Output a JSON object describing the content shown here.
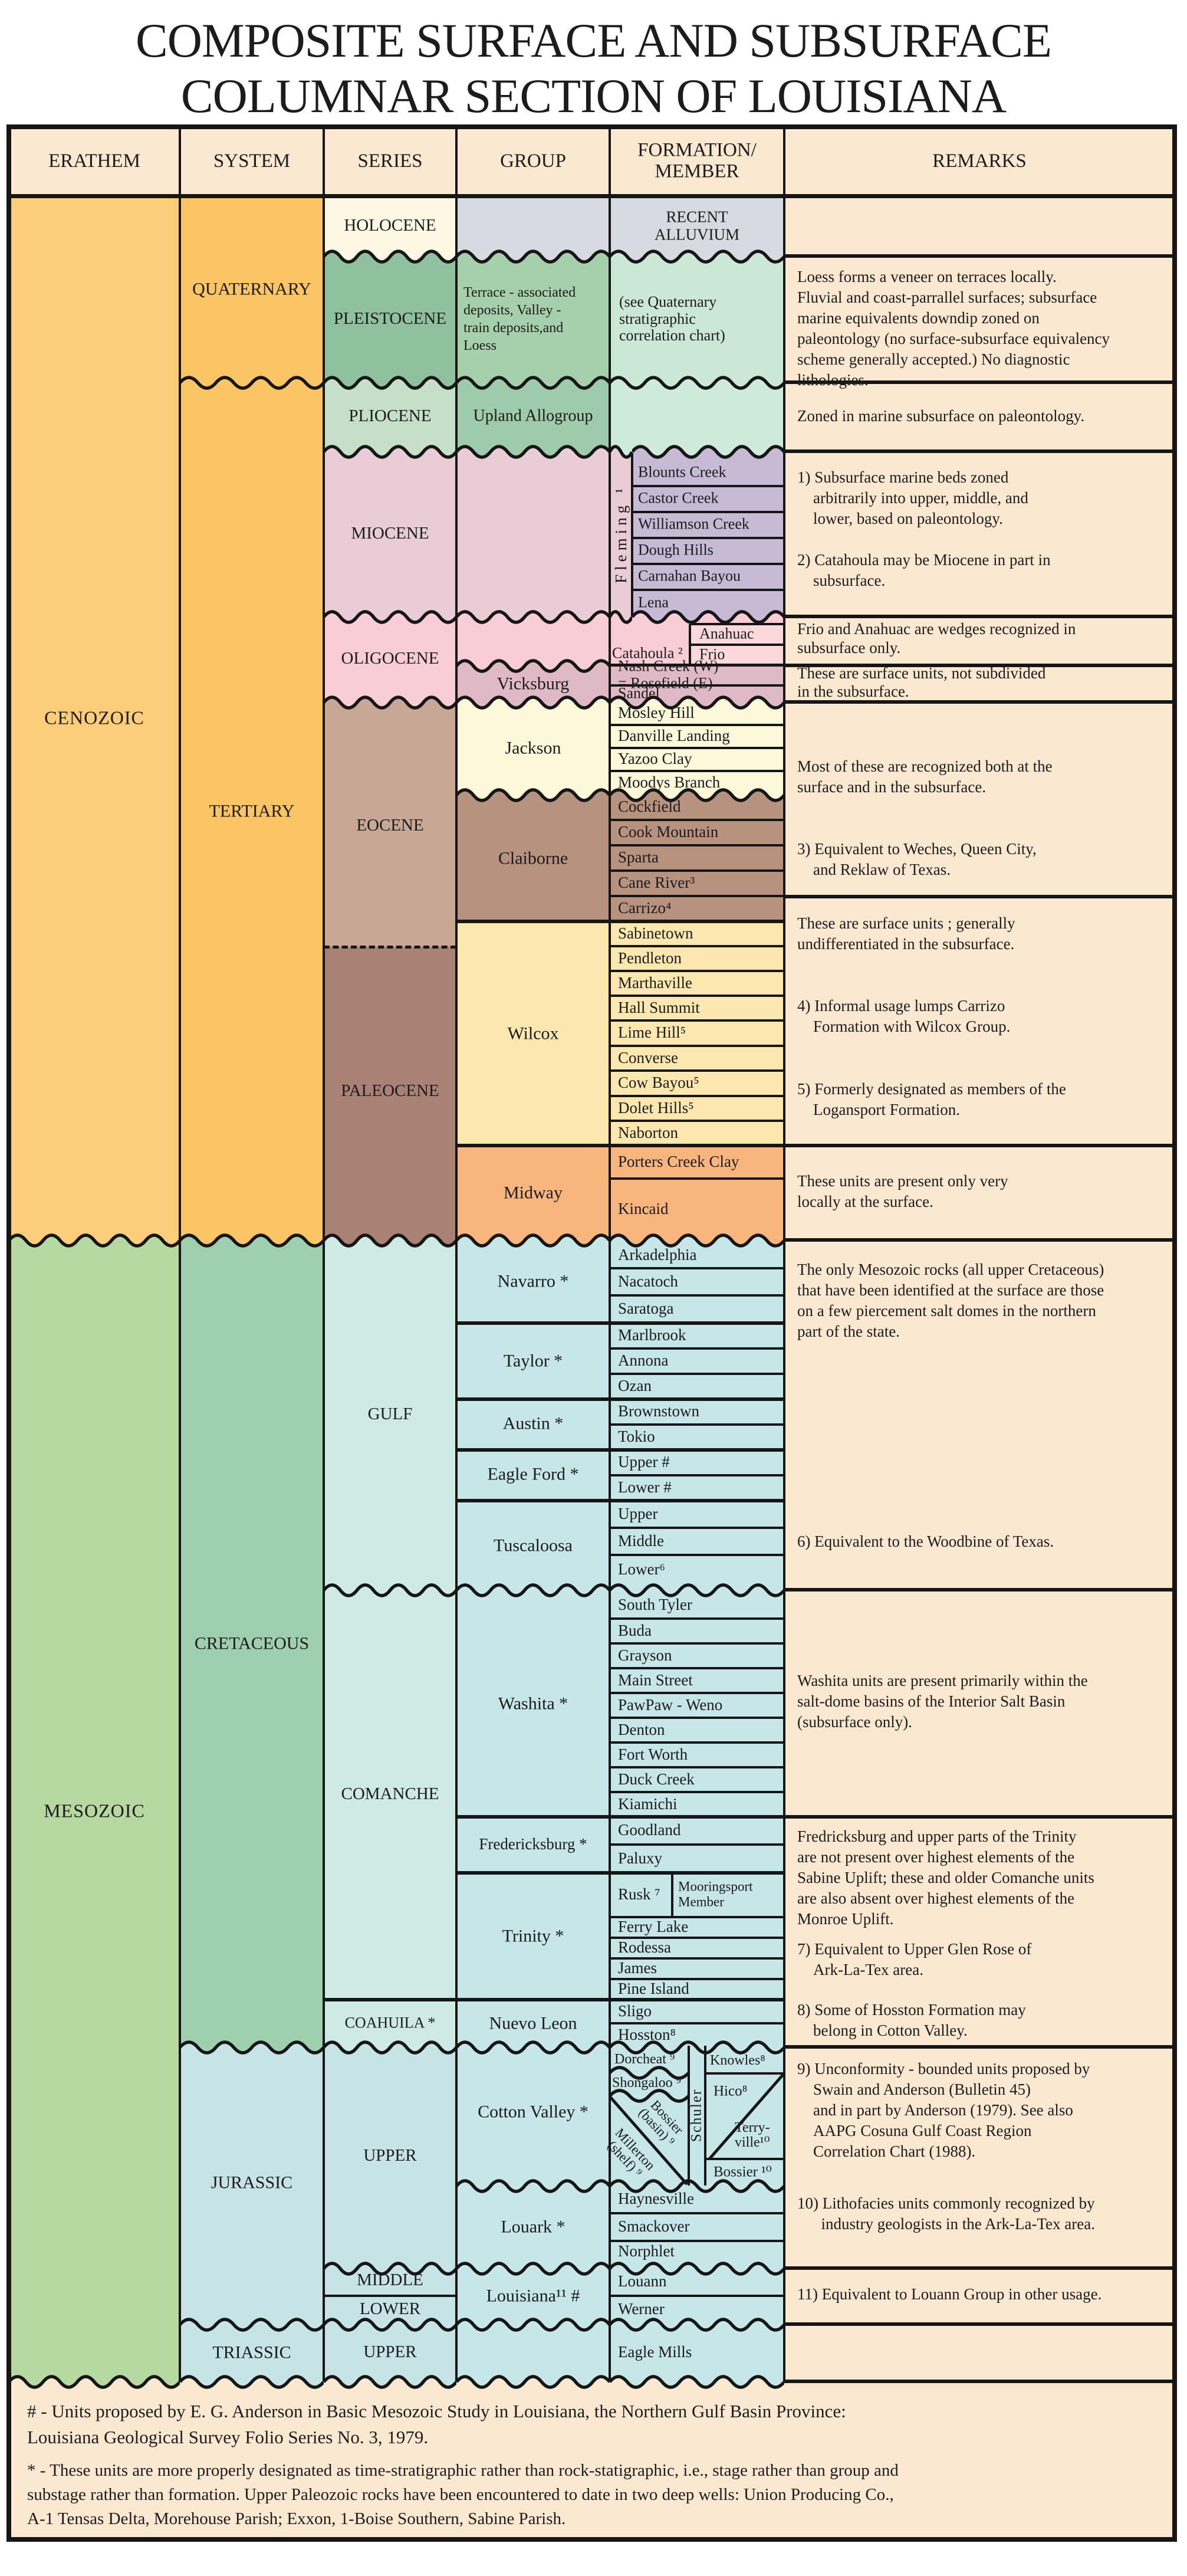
{
  "title": {
    "line1": "COMPOSITE SURFACE AND SUBSURFACE",
    "line2": "COLUMNAR SECTION OF LOUISIANA"
  },
  "headers": {
    "erathem": "ERATHEM",
    "system": "SYSTEM",
    "series": "SERIES",
    "group": "GROUP",
    "formation": "FORMATION/\nMEMBER",
    "remarks": "REMARKS"
  },
  "erathem": {
    "cenozoic": "CENOZOIC",
    "mesozoic": "MESOZOIC"
  },
  "system": {
    "quaternary": "QUATERNARY",
    "tertiary": "TERTIARY",
    "cretaceous": "CRETACEOUS",
    "jurassic": "JURASSIC",
    "triassic": "TRIASSIC"
  },
  "series": {
    "holocene": "HOLOCENE",
    "pleistocene": "PLEISTOCENE",
    "pliocene": "PLIOCENE",
    "miocene": "MIOCENE",
    "oligocene": "OLIGOCENE",
    "eocene": "EOCENE",
    "paleocene": "PALEOCENE",
    "gulf": "GULF",
    "comanche": "COMANCHE",
    "coahuila": "COAHUILA *",
    "upper_jurassic": "UPPER",
    "middle_jurassic": "MIDDLE",
    "lower_jurassic": "LOWER",
    "upper_triassic": "UPPER"
  },
  "group": {
    "pleistocene_units": "Terrace - associated\ndeposits, Valley -\ntrain deposits,and\nLoess",
    "upland": "Upland Allogroup",
    "vicksburg": "Vicksburg",
    "jackson": "Jackson",
    "claiborne": "Claiborne",
    "wilcox": "Wilcox",
    "midway": "Midway",
    "navarro": "Navarro *",
    "taylor": "Taylor *",
    "austin": "Austin *",
    "eagle_ford": "Eagle Ford *",
    "tuscaloosa": "Tuscaloosa",
    "washita": "Washita *",
    "fredericksburg": "Fredericksburg *",
    "trinity": "Trinity *",
    "nuevo_leon": "Nuevo Leon",
    "cotton_valley": "Cotton Valley *",
    "louark": "Louark *",
    "louisiana": "Louisiana¹¹ #"
  },
  "formation": {
    "recent_alluvium": "RECENT\nALLUVIUM",
    "quaternary_note": "(see Quaternary\nstratigraphic\ncorrelation chart)",
    "fleming": "Fleming ¹",
    "blounts_creek": "Blounts Creek",
    "castor_creek": "Castor Creek",
    "williamson_creek": "Williamson Creek",
    "dough_hills": "Dough Hills",
    "carnahan_bayou": "Carnahan Bayou",
    "lena": "Lena",
    "catahoula": "Catahoula ²",
    "anahuac": "Anahuac",
    "frio": "Frio",
    "nash_creek": "Nash Creek (W)\n= Rosefield (E)",
    "sandel": "Sandel",
    "mosley_hill": "Mosley Hill",
    "danville_landing": "Danville Landing",
    "yazoo_clay": "Yazoo Clay",
    "moodys_branch": "Moodys Branch",
    "cockfield": "Cockfield",
    "cook_mountain": "Cook Mountain",
    "sparta": "Sparta",
    "cane_river": "Cane River³",
    "carrizo": "Carrizo⁴",
    "sabinetown": "Sabinetown",
    "pendleton": "Pendleton",
    "marthaville": "Marthaville",
    "hall_summit": "Hall Summit",
    "lime_hill": "Lime Hill⁵",
    "converse": "Converse",
    "cow_bayou": "Cow Bayou⁵",
    "dolet_hills": "Dolet Hills⁵",
    "naborton": "Naborton",
    "porters_creek": "Porters Creek Clay",
    "kincaid": "Kincaid",
    "arkadelphia": "Arkadelphia",
    "nacatoch": "Nacatoch",
    "saratoga": "Saratoga",
    "marlbrook": "Marlbrook",
    "annona": "Annona",
    "ozan": "Ozan",
    "brownstown": "Brownstown",
    "tokio": "Tokio",
    "upper_eagle_ford": "Upper #",
    "lower_eagle_ford": "Lower #",
    "upper_tuscaloosa": "Upper",
    "middle_tuscaloosa": "Middle",
    "lower_tuscaloosa": "Lower⁶",
    "south_tyler": "South Tyler",
    "buda": "Buda",
    "grayson": "Grayson",
    "main_street": "Main Street",
    "pawpaw_weno": "PawPaw - Weno",
    "denton": "Denton",
    "fort_worth": "Fort Worth",
    "duck_creek": "Duck Creek",
    "kiamichi": "Kiamichi",
    "goodland": "Goodland",
    "paluxy": "Paluxy",
    "rusk": "Rusk ⁷",
    "mooringsport": "Mooringsport\nMember",
    "ferry_lake": "Ferry Lake",
    "rodessa": "Rodessa",
    "james": "James",
    "pine_island": "Pine Island",
    "sligo": "Sligo",
    "hosston": "Hosston⁸",
    "dorcheat": "Dorcheat ⁹",
    "shongaloo": "Shongaloo ⁹",
    "millerton": "Millerton\n(shelf) ⁹",
    "bossier_basin": "Bossier\n(basin) ⁹",
    "schuler": "Schuler",
    "knowles": "Knowles⁸",
    "hico": "Hico⁸",
    "terryville": "Terry-\nville¹⁰",
    "bossier": "Bossier ¹⁰",
    "haynesville": "Haynesville",
    "smackover": "Smackover",
    "norphlet": "Norphlet",
    "louann": "Louann",
    "werner": "Werner",
    "eagle_mills": "Eagle Mills"
  },
  "remarks": {
    "pleistocene": "Loess forms a veneer on terraces locally.\nFluvial and coast-parrallel surfaces; subsurface\nmarine equivalents downdip zoned on\npaleontology (no surface-subsurface equivalency\nscheme generally accepted.) No diagnostic\nlithologies.",
    "pliocene": "Zoned in marine subsurface on paleontology.",
    "miocene": "1) Subsurface marine beds zoned\n    arbitrarily into upper, middle, and\n    lower, based on paleontology.\n\n2) Catahoula may be Miocene in part in\n    subsurface.",
    "catahoula": "Frio and Anahuac are wedges recognized in\nsubsurface only.",
    "vicksburg": "These are surface units, not subdivided\nin the subsurface.",
    "eocene": "Most of these are recognized both at the\nsurface and in the subsurface.\n\n\n3) Equivalent to Weches, Queen City,\n    and Reklaw of Texas.",
    "wilcox": "These are surface units ; generally\nundifferentiated in the subsurface.\n\n\n4) Informal usage lumps Carrizo\n    Formation with Wilcox Group.\n\n\n5) Formerly designated as members of the\n    Logansport Formation.",
    "midway": "These units are present only very\nlocally at the surface.",
    "gulf_intro": "The only Mesozoic rocks (all upper Cretaceous)\nthat have been identified at the surface are those\non a few piercement salt domes in the northern\npart of the state.",
    "note6": "6) Equivalent to the Woodbine of Texas.",
    "washita": "Washita units are present primarily within the\nsalt-dome basins of the Interior Salt Basin\n(subsurface only).",
    "fredericksburg": "Fredricksburg and upper parts of the Trinity\nare not present over highest elements of the\nSabine Uplift; these and older Comanche units\nare also absent over highest elements of the\nMonroe Uplift.",
    "note7": "7) Equivalent to Upper Glen Rose of\n    Ark-La-Tex area.",
    "note8": "8) Some of Hosston Formation may\n    belong in Cotton Valley.",
    "note9": "9) Unconformity - bounded units proposed by\n    Swain and Anderson (Bulletin 45)\n    and in part by Anderson (1979). See also\n    AAPG Cosuna Gulf Coast Region\n    Correlation Chart (1988).",
    "note10": "10) Lithofacies units commonly recognized by\n      industry geologists in the Ark-La-Tex area.",
    "note11": "11) Equivalent to Louann Group in other usage."
  },
  "footnotes": {
    "hash": "# - Units proposed by E. G. Anderson in Basic Mesozoic Study in Louisiana, the Northern Gulf Basin Province:\nLouisiana Geological Survey Folio Series No. 3, 1979.",
    "star": "* - These units are more properly designated as time-stratigraphic rather than rock-statigraphic, i.e., stage rather than group and\nsubstage rather than formation. Upper Paleozoic rocks have been encountered to date in two deep wells: Union Producing Co.,\nA-1 Tensas Delta, Morehouse Parish; Exxon, 1-Boise Southern, Sabine Parish."
  },
  "palette": {
    "peach": "#fbe8d0",
    "era_orange": "#fdce79",
    "sys_orange": "#fbc464",
    "holocene_cream": "#fdf8e3",
    "gray": "#d8dae2",
    "pleisto_green": "#90c19e",
    "pleisto_group": "#a6cfac",
    "pleisto_fm": "#cbe7d6",
    "plio_green": "#c5dfc9",
    "plio_group": "#9ecbab",
    "plio_fm": "#cdeada",
    "mauve": "#e8cdd7",
    "lavender": "#c6bad4",
    "pink": "#f9cdd5",
    "pink_light": "#fad8dc",
    "rose": "#dfbac6",
    "tan": "#c9a795",
    "cream": "#fdf8d9",
    "brown": "#b7927f",
    "brown_dark": "#aa8275",
    "wilcox_y": "#fce8af",
    "midway_o": "#f8b67e",
    "meso_green": "#b5d9a1",
    "cret_green": "#9ed0af",
    "aqua": "#cdeae4",
    "cyan": "#c6e6e7",
    "jur_cyan": "#c6e4e6",
    "line": "#161616"
  }
}
